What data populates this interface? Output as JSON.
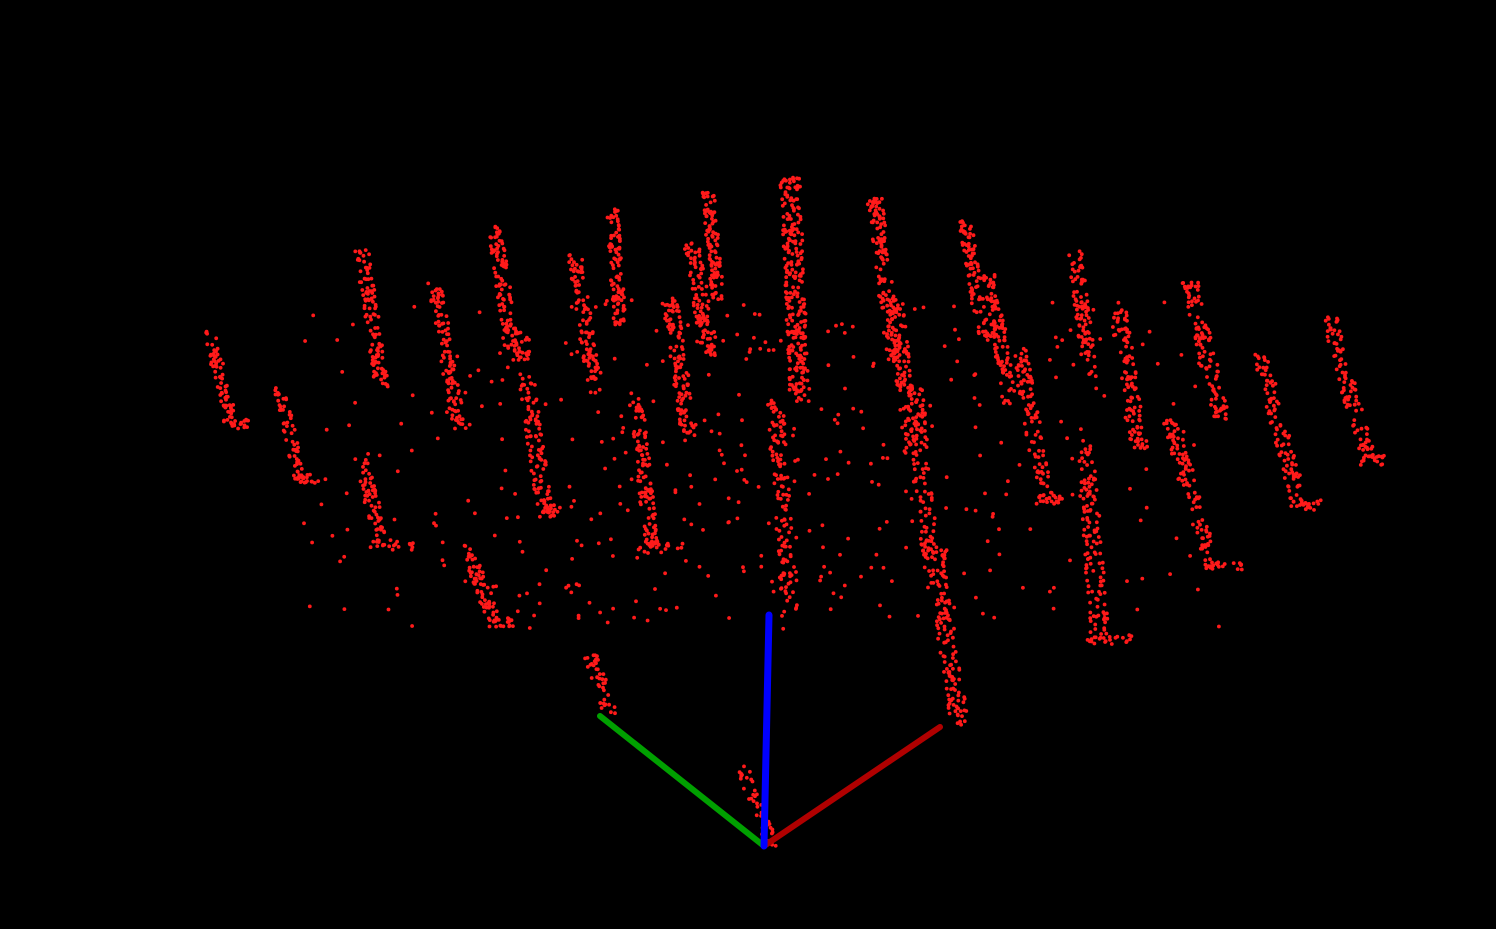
{
  "viewer": {
    "background": "#000000",
    "point_color": "#ff1a1a",
    "axes": {
      "x": {
        "color": "#b00000"
      },
      "y": {
        "color": "#00a000"
      },
      "z": {
        "color": "#0000ff"
      }
    },
    "point_cloud": {
      "description_shape": "vertical red point clusters (pillars) arranged around a 3D origin with sparse scattered points between them",
      "pillar_count_estimate": 24
    }
  }
}
